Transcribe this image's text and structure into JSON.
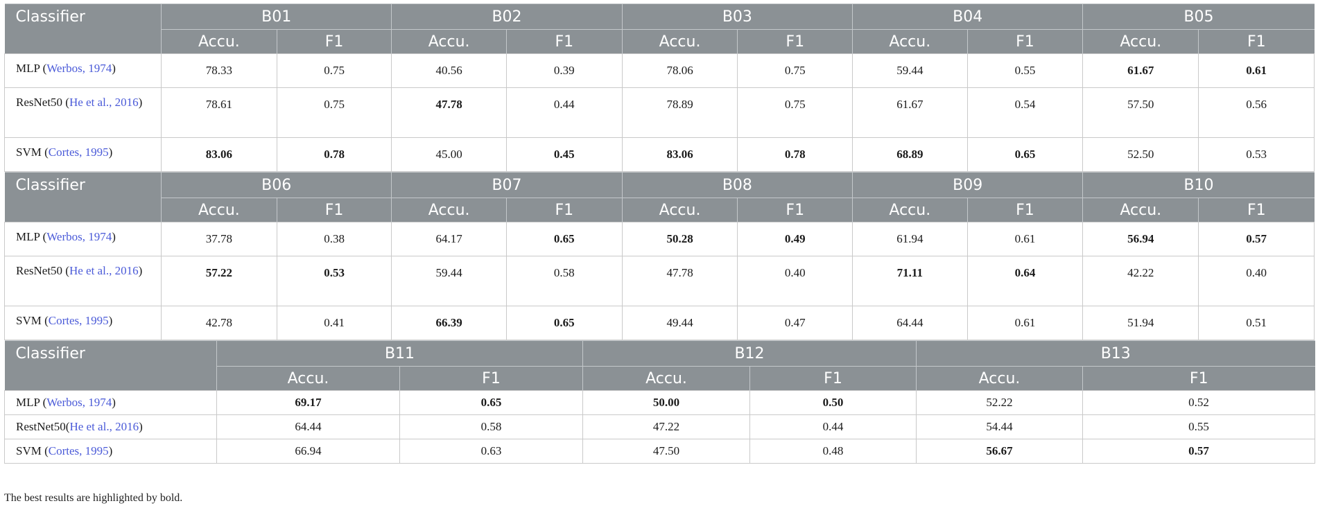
{
  "blocks": [
    {
      "header": "Classifier",
      "bands": [
        "B01",
        "B02",
        "B03",
        "B04",
        "B05"
      ],
      "metrics": [
        "Accu.",
        "F1"
      ],
      "rows": [
        {
          "name": "MLP ",
          "cite": "Werbos, 1974",
          "suffix": ")",
          "prefix": "(",
          "values": [
            "78.33",
            "0.75",
            "40.56",
            "0.39",
            "78.06",
            "0.75",
            "59.44",
            "0.55",
            "61.67",
            "0.61"
          ],
          "bold": [
            false,
            false,
            false,
            false,
            false,
            false,
            false,
            false,
            true,
            true
          ]
        },
        {
          "name": "ResNet50 ",
          "cite": "He et al., 2016",
          "suffix": ")",
          "prefix": "(",
          "values": [
            "78.61",
            "0.75",
            "47.78",
            "0.44",
            "78.89",
            "0.75",
            "61.67",
            "0.54",
            "57.50",
            "0.56"
          ],
          "bold": [
            false,
            false,
            true,
            false,
            false,
            false,
            false,
            false,
            false,
            false
          ]
        },
        {
          "name": "SVM ",
          "cite": "Cortes, 1995",
          "suffix": ")",
          "prefix": "(",
          "values": [
            "83.06",
            "0.78",
            "45.00",
            "0.45",
            "83.06",
            "0.78",
            "68.89",
            "0.65",
            "52.50",
            "0.53"
          ],
          "bold": [
            true,
            true,
            false,
            true,
            true,
            true,
            true,
            true,
            false,
            false
          ]
        }
      ]
    },
    {
      "header": "Classifier",
      "bands": [
        "B06",
        "B07",
        "B08",
        "B09",
        "B10"
      ],
      "metrics": [
        "Accu.",
        "F1"
      ],
      "rows": [
        {
          "name": "MLP ",
          "cite": "Werbos, 1974",
          "suffix": ")",
          "prefix": "(",
          "values": [
            "37.78",
            "0.38",
            "64.17",
            "0.65",
            "50.28",
            "0.49",
            "61.94",
            "0.61",
            "56.94",
            "0.57"
          ],
          "bold": [
            false,
            false,
            false,
            true,
            true,
            true,
            false,
            false,
            true,
            true
          ]
        },
        {
          "name": "ResNet50 ",
          "cite": "He et al., 2016",
          "suffix": ")",
          "prefix": "(",
          "values": [
            "57.22",
            "0.53",
            "59.44",
            "0.58",
            "47.78",
            "0.40",
            "71.11",
            "0.64",
            "42.22",
            "0.40"
          ],
          "bold": [
            true,
            true,
            false,
            false,
            false,
            false,
            true,
            true,
            false,
            false
          ]
        },
        {
          "name": "SVM ",
          "cite": "Cortes, 1995",
          "suffix": ")",
          "prefix": "(",
          "values": [
            "42.78",
            "0.41",
            "66.39",
            "0.65",
            "49.44",
            "0.47",
            "64.44",
            "0.61",
            "51.94",
            "0.51"
          ],
          "bold": [
            false,
            false,
            true,
            true,
            false,
            false,
            false,
            false,
            false,
            false
          ]
        }
      ]
    },
    {
      "header": "Classifier",
      "bands": [
        "B11",
        "B12",
        "B13"
      ],
      "metrics": [
        "Accu.",
        "F1"
      ],
      "rows": [
        {
          "name": "MLP ",
          "cite": "Werbos, 1974",
          "suffix": ")",
          "prefix": "(",
          "values": [
            "69.17",
            "0.65",
            "50.00",
            "0.50",
            "52.22",
            "0.52"
          ],
          "bold": [
            true,
            true,
            true,
            true,
            false,
            false
          ]
        },
        {
          "name": "RestNet50",
          "cite": "He et al., 2016",
          "suffix": ")",
          "prefix": "(",
          "values": [
            "64.44",
            "0.58",
            "47.22",
            "0.44",
            "54.44",
            "0.55"
          ],
          "bold": [
            false,
            false,
            false,
            false,
            false,
            false
          ]
        },
        {
          "name": "SVM ",
          "cite": "Cortes, 1995",
          "suffix": ")",
          "prefix": "(",
          "values": [
            "66.94",
            "0.63",
            "47.50",
            "0.48",
            "56.67",
            "0.57"
          ],
          "bold": [
            false,
            false,
            false,
            false,
            true,
            true
          ]
        }
      ]
    }
  ],
  "footnote": "The best results are highlighted by bold.",
  "colors": {
    "header_bg": "#8b9195",
    "cite": "#4a5ad8"
  }
}
